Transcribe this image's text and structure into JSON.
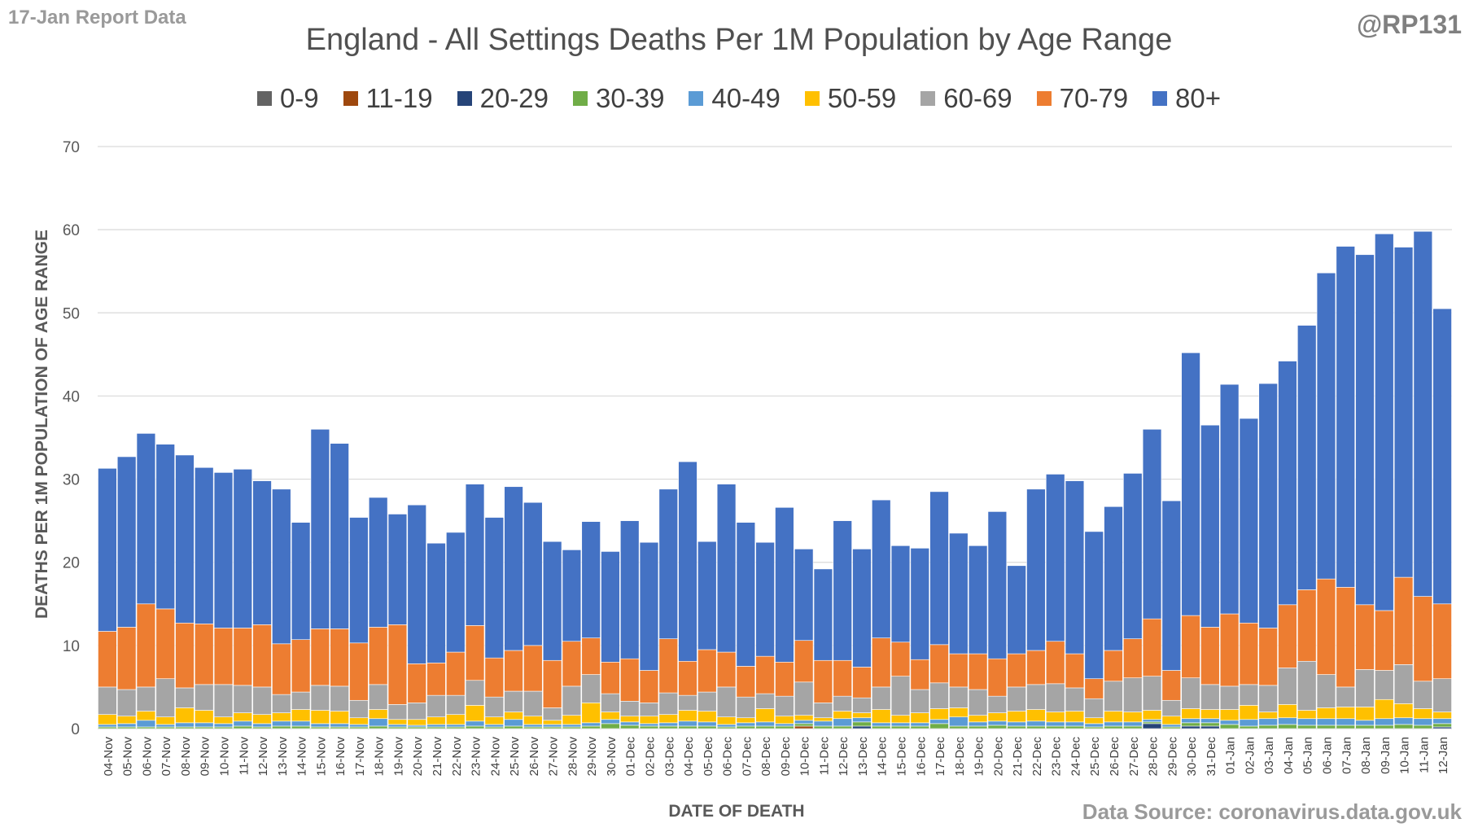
{
  "header": {
    "report_label": "17-Jan Report Data",
    "handle": "@RP131",
    "source": "Data Source: coronavirus.data.gov.uk"
  },
  "chart_data": {
    "type": "bar",
    "stacked": true,
    "title": "England - All Settings Deaths Per 1M Population by Age Range",
    "xlabel": "DATE OF DEATH",
    "ylabel": "DEATHS PER 1M POPULATION OF AGE RANGE",
    "ylim": [
      0,
      70
    ],
    "yticks": [
      0,
      10,
      20,
      30,
      40,
      50,
      60,
      70
    ],
    "grid": true,
    "legend_position": "top",
    "categories": [
      "04-Nov",
      "05-Nov",
      "06-Nov",
      "07-Nov",
      "08-Nov",
      "09-Nov",
      "10-Nov",
      "11-Nov",
      "12-Nov",
      "13-Nov",
      "14-Nov",
      "15-Nov",
      "16-Nov",
      "17-Nov",
      "18-Nov",
      "19-Nov",
      "20-Nov",
      "21-Nov",
      "22-Nov",
      "23-Nov",
      "24-Nov",
      "25-Nov",
      "26-Nov",
      "27-Nov",
      "28-Nov",
      "29-Nov",
      "30-Nov",
      "01-Dec",
      "02-Dec",
      "03-Dec",
      "04-Dec",
      "05-Dec",
      "06-Dec",
      "07-Dec",
      "08-Dec",
      "09-Dec",
      "10-Dec",
      "11-Dec",
      "12-Dec",
      "13-Dec",
      "14-Dec",
      "15-Dec",
      "16-Dec",
      "17-Dec",
      "18-Dec",
      "19-Dec",
      "20-Dec",
      "21-Dec",
      "22-Dec",
      "23-Dec",
      "24-Dec",
      "25-Dec",
      "26-Dec",
      "27-Dec",
      "28-Dec",
      "29-Dec",
      "30-Dec",
      "31-Dec",
      "01-Jan",
      "02-Jan",
      "03-Jan",
      "04-Jan",
      "05-Jan",
      "06-Jan",
      "07-Jan",
      "08-Jan",
      "09-Jan",
      "10-Jan",
      "11-Jan",
      "12-Jan"
    ],
    "series": [
      {
        "name": "0-9",
        "color": "#636363",
        "values": [
          0,
          0,
          0,
          0,
          0,
          0,
          0,
          0,
          0,
          0,
          0,
          0,
          0,
          0,
          0,
          0,
          0,
          0,
          0,
          0,
          0,
          0,
          0,
          0,
          0,
          0,
          0,
          0,
          0,
          0,
          0,
          0,
          0,
          0,
          0,
          0,
          0,
          0,
          0,
          0,
          0,
          0,
          0,
          0,
          0,
          0,
          0,
          0,
          0,
          0,
          0,
          0,
          0,
          0,
          0,
          0,
          0,
          0,
          0,
          0,
          0,
          0,
          0,
          0,
          0,
          0,
          0,
          0,
          0,
          0
        ]
      },
      {
        "name": "11-19",
        "color": "#9e480e",
        "values": [
          0,
          0,
          0,
          0,
          0,
          0,
          0,
          0,
          0,
          0,
          0,
          0,
          0,
          0,
          0,
          0,
          0,
          0,
          0,
          0,
          0,
          0,
          0,
          0,
          0,
          0,
          0,
          0,
          0,
          0,
          0,
          0,
          0,
          0,
          0,
          0,
          0.3,
          0,
          0,
          0,
          0,
          0,
          0,
          0,
          0,
          0,
          0,
          0,
          0,
          0,
          0,
          0,
          0,
          0,
          0,
          0,
          0,
          0,
          0,
          0,
          0,
          0,
          0,
          0,
          0,
          0,
          0,
          0,
          0,
          0
        ]
      },
      {
        "name": "20-29",
        "color": "#264478",
        "values": [
          0,
          0,
          0,
          0,
          0,
          0,
          0,
          0,
          0,
          0,
          0,
          0,
          0,
          0,
          0,
          0,
          0,
          0,
          0,
          0,
          0,
          0,
          0,
          0,
          0,
          0,
          0,
          0,
          0,
          0,
          0,
          0,
          0,
          0,
          0,
          0,
          0,
          0,
          0,
          0.3,
          0,
          0,
          0,
          0,
          0,
          0,
          0,
          0,
          0,
          0,
          0,
          0,
          0,
          0,
          0.6,
          0,
          0.3,
          0.3,
          0,
          0,
          0,
          0,
          0,
          0,
          0,
          0,
          0,
          0,
          0,
          0.2
        ]
      },
      {
        "name": "30-39",
        "color": "#70ad47",
        "values": [
          0.2,
          0.2,
          0.2,
          0.2,
          0.2,
          0.2,
          0.2,
          0.3,
          0.2,
          0.3,
          0.3,
          0.2,
          0.2,
          0.2,
          0.3,
          0.2,
          0.2,
          0.2,
          0.2,
          0.3,
          0.2,
          0.3,
          0.2,
          0.2,
          0.2,
          0.3,
          0.6,
          0.4,
          0.3,
          0.3,
          0.3,
          0.3,
          0.2,
          0.3,
          0.3,
          0.3,
          0.3,
          0.3,
          0.3,
          0.5,
          0.3,
          0.3,
          0.3,
          0.6,
          0.3,
          0.3,
          0.4,
          0.3,
          0.3,
          0.3,
          0.3,
          0.2,
          0.3,
          0.3,
          0.2,
          0.2,
          0.4,
          0.4,
          0.5,
          0.3,
          0.4,
          0.5,
          0.4,
          0.4,
          0.4,
          0.4,
          0.4,
          0.5,
          0.4,
          0.4
        ]
      },
      {
        "name": "40-49",
        "color": "#5b9bd5",
        "values": [
          0.3,
          0.4,
          0.8,
          0.3,
          0.5,
          0.5,
          0.4,
          0.6,
          0.4,
          0.6,
          0.6,
          0.4,
          0.4,
          0.3,
          0.9,
          0.3,
          0.2,
          0.3,
          0.3,
          0.6,
          0.3,
          0.8,
          0.3,
          0.3,
          0.3,
          0.4,
          0.5,
          0.4,
          0.3,
          0.4,
          0.6,
          0.5,
          0.3,
          0.4,
          0.5,
          0.3,
          0.4,
          0.6,
          0.9,
          0.5,
          0.4,
          0.4,
          0.4,
          0.5,
          1.1,
          0.5,
          0.5,
          0.5,
          0.6,
          0.5,
          0.5,
          0.4,
          0.5,
          0.5,
          0.3,
          0.3,
          0.5,
          0.5,
          0.5,
          0.8,
          0.8,
          0.8,
          0.8,
          0.8,
          0.8,
          0.6,
          0.8,
          0.8,
          0.8,
          0.6
        ]
      },
      {
        "name": "50-59",
        "color": "#ffc000",
        "values": [
          1.2,
          0.9,
          1.1,
          0.9,
          1.8,
          1.5,
          0.8,
          1.0,
          1.1,
          1.0,
          1.4,
          1.6,
          1.5,
          0.8,
          1.1,
          0.6,
          0.7,
          0.9,
          1.2,
          1.9,
          0.9,
          0.9,
          1.0,
          0.5,
          1.1,
          2.4,
          0.9,
          0.7,
          0.9,
          1.0,
          1.3,
          1.3,
          0.9,
          0.6,
          1.6,
          0.9,
          0.6,
          0.4,
          0.9,
          0.6,
          1.6,
          0.9,
          1.2,
          1.3,
          1.1,
          0.8,
          1.0,
          1.3,
          1.4,
          1.2,
          1.3,
          0.7,
          1.3,
          1.2,
          1.1,
          1.0,
          1.2,
          1.1,
          1.3,
          1.7,
          0.8,
          1.6,
          1.0,
          1.3,
          1.4,
          1.6,
          2.3,
          1.7,
          1.2,
          0.8
        ]
      },
      {
        "name": "60-69",
        "color": "#a5a5a5",
        "values": [
          3.3,
          3.2,
          2.9,
          4.6,
          2.4,
          3.1,
          3.9,
          3.3,
          3.3,
          2.2,
          2.1,
          3.0,
          3.0,
          2.1,
          3.0,
          1.8,
          2.0,
          2.6,
          2.3,
          3.0,
          2.4,
          2.5,
          3.0,
          1.5,
          3.5,
          3.4,
          2.2,
          1.8,
          1.6,
          2.6,
          1.8,
          2.3,
          3.6,
          2.5,
          1.8,
          2.4,
          4.0,
          1.8,
          1.8,
          1.8,
          2.7,
          4.7,
          2.8,
          3.1,
          2.5,
          3.1,
          2.0,
          2.9,
          3.0,
          3.4,
          2.8,
          2.3,
          3.6,
          4.1,
          4.1,
          1.9,
          3.7,
          3.0,
          2.8,
          2.5,
          3.2,
          4.4,
          5.9,
          4.0,
          2.4,
          4.5,
          3.5,
          4.7,
          3.3,
          4.0
        ]
      },
      {
        "name": "70-79",
        "color": "#ed7d31",
        "values": [
          6.7,
          7.5,
          10.0,
          8.4,
          7.8,
          7.3,
          6.8,
          6.9,
          7.5,
          6.1,
          6.3,
          6.8,
          6.9,
          6.9,
          6.9,
          9.6,
          4.7,
          3.9,
          5.2,
          6.6,
          4.7,
          4.9,
          5.5,
          5.7,
          5.4,
          4.4,
          3.8,
          5.1,
          3.9,
          6.5,
          4.1,
          5.1,
          4.2,
          3.7,
          4.5,
          4.1,
          5.0,
          5.1,
          4.3,
          3.7,
          5.9,
          4.1,
          3.6,
          4.6,
          4.0,
          4.3,
          4.5,
          4.0,
          4.1,
          5.1,
          4.1,
          2.4,
          3.7,
          4.7,
          6.9,
          3.6,
          7.5,
          6.9,
          8.7,
          7.4,
          6.9,
          7.6,
          8.6,
          11.5,
          12.0,
          7.8,
          7.2,
          10.5,
          10.2,
          9.0
        ]
      },
      {
        "name": "80+",
        "color": "#4472c4",
        "values": [
          19.6,
          20.5,
          20.5,
          19.8,
          20.2,
          18.8,
          18.7,
          19.1,
          17.3,
          18.6,
          14.1,
          24.0,
          22.3,
          15.1,
          15.6,
          13.3,
          19.1,
          14.4,
          14.4,
          17.0,
          16.9,
          19.7,
          17.2,
          14.3,
          11.0,
          14.0,
          13.3,
          16.6,
          15.4,
          18.0,
          24.0,
          13.0,
          20.2,
          17.3,
          13.7,
          18.6,
          11.0,
          11.0,
          16.8,
          14.2,
          16.6,
          11.6,
          13.4,
          18.4,
          14.5,
          13.0,
          17.7,
          10.6,
          19.4,
          20.1,
          20.8,
          17.7,
          17.3,
          19.9,
          22.8,
          20.4,
          31.6,
          24.3,
          27.6,
          24.6,
          29.4,
          29.3,
          31.8,
          36.8,
          41.0,
          42.1,
          45.3,
          39.7,
          43.9,
          35.5
        ]
      }
    ]
  }
}
